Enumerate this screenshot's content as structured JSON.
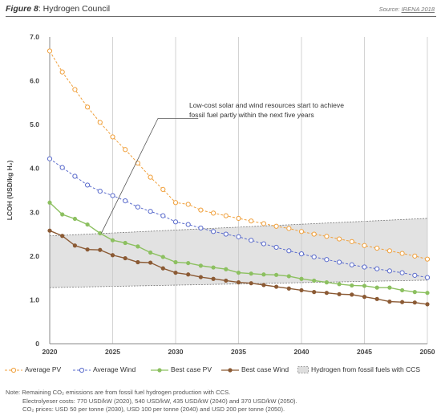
{
  "header": {
    "figure_label": "Figure 8",
    "title": ": Hydrogen Council",
    "source_prefix": "Source: ",
    "source_link": "IRENA 2018"
  },
  "annotation": {
    "line1": "Low-cost solar and wind resources start to achieve",
    "line2": "fossil fuel partly within the next five years"
  },
  "legend": [
    {
      "name": "Average PV",
      "color": "#f0a03c"
    },
    {
      "name": "Average Wind",
      "color": "#5b6ccc"
    },
    {
      "name": "Best case PV",
      "color": "#8cc060"
    },
    {
      "name": "Best case Wind",
      "color": "#8b5a34"
    },
    {
      "name": "Hydrogen from fossil fuels with CCS",
      "color": "#d9d9d9"
    }
  ],
  "notes": {
    "line1": "Note: Remaining CO₂ emissions are from fossil fuel hydrogen production with CCS.",
    "line2": "Electrolyeser costs: 770 USD/kW (2020), 540 USD/kW, 435 USD/kW (2040) and 370 USD/kW (2050).",
    "line3": "CO₂ prices: USD 50 per tonne (2030), USD 100 per tonne (2040) and USD 200 per tonne (2050)."
  },
  "chart_data": {
    "type": "line",
    "title": "",
    "xlabel": "",
    "ylabel": "LCOH (USD/kg H₂)",
    "xlim": [
      2020,
      2050
    ],
    "ylim": [
      0,
      7
    ],
    "x_ticks": [
      "2020",
      "2025",
      "2030",
      "2035",
      "2040",
      "2045",
      "2050"
    ],
    "y_ticks": [
      "0",
      "1.0",
      "2.0",
      "3.0",
      "4.0",
      "5.0",
      "6.0",
      "7.0"
    ],
    "grid": "vertical",
    "legend_position": "bottom",
    "x": [
      2020,
      2021,
      2022,
      2023,
      2024,
      2025,
      2026,
      2027,
      2028,
      2029,
      2030,
      2031,
      2032,
      2033,
      2034,
      2035,
      2036,
      2037,
      2038,
      2039,
      2040,
      2041,
      2042,
      2043,
      2044,
      2045,
      2046,
      2047,
      2048,
      2049,
      2050
    ],
    "series": [
      {
        "name": "Average PV",
        "style": "dashed",
        "marker": "open",
        "color": "#f0a03c",
        "values": [
          6.68,
          6.2,
          5.8,
          5.4,
          5.05,
          4.72,
          4.43,
          4.12,
          3.8,
          3.52,
          3.22,
          3.18,
          3.05,
          2.98,
          2.92,
          2.86,
          2.8,
          2.74,
          2.68,
          2.63,
          2.56,
          2.5,
          2.45,
          2.39,
          2.33,
          2.24,
          2.18,
          2.12,
          2.06,
          2.0,
          1.93
        ]
      },
      {
        "name": "Average Wind",
        "style": "dashed",
        "marker": "open",
        "color": "#5b6ccc",
        "values": [
          4.22,
          4.02,
          3.82,
          3.62,
          3.48,
          3.38,
          3.26,
          3.12,
          3.02,
          2.92,
          2.78,
          2.72,
          2.64,
          2.56,
          2.5,
          2.44,
          2.36,
          2.28,
          2.2,
          2.12,
          2.05,
          1.98,
          1.92,
          1.86,
          1.8,
          1.75,
          1.71,
          1.66,
          1.62,
          1.56,
          1.51
        ]
      },
      {
        "name": "Best case PV",
        "style": "solid",
        "marker": "filled",
        "color": "#8cc060",
        "values": [
          3.22,
          2.95,
          2.85,
          2.72,
          2.52,
          2.36,
          2.3,
          2.22,
          2.08,
          1.98,
          1.86,
          1.84,
          1.78,
          1.74,
          1.7,
          1.62,
          1.6,
          1.58,
          1.57,
          1.54,
          1.48,
          1.44,
          1.4,
          1.36,
          1.33,
          1.32,
          1.28,
          1.28,
          1.22,
          1.18,
          1.16
        ]
      },
      {
        "name": "Best case Wind",
        "style": "solid",
        "marker": "filled",
        "color": "#8b5a34",
        "values": [
          2.58,
          2.46,
          2.24,
          2.15,
          2.14,
          2.02,
          1.95,
          1.86,
          1.85,
          1.72,
          1.62,
          1.58,
          1.52,
          1.48,
          1.44,
          1.4,
          1.38,
          1.34,
          1.3,
          1.26,
          1.22,
          1.18,
          1.16,
          1.13,
          1.12,
          1.07,
          1.02,
          0.96,
          0.95,
          0.94,
          0.9
        ]
      }
    ],
    "band": {
      "name": "Hydrogen from fossil fuels with CCS",
      "x": [
        2020,
        2050
      ],
      "lower": [
        1.28,
        1.45
      ],
      "upper": [
        2.46,
        2.86
      ]
    }
  }
}
